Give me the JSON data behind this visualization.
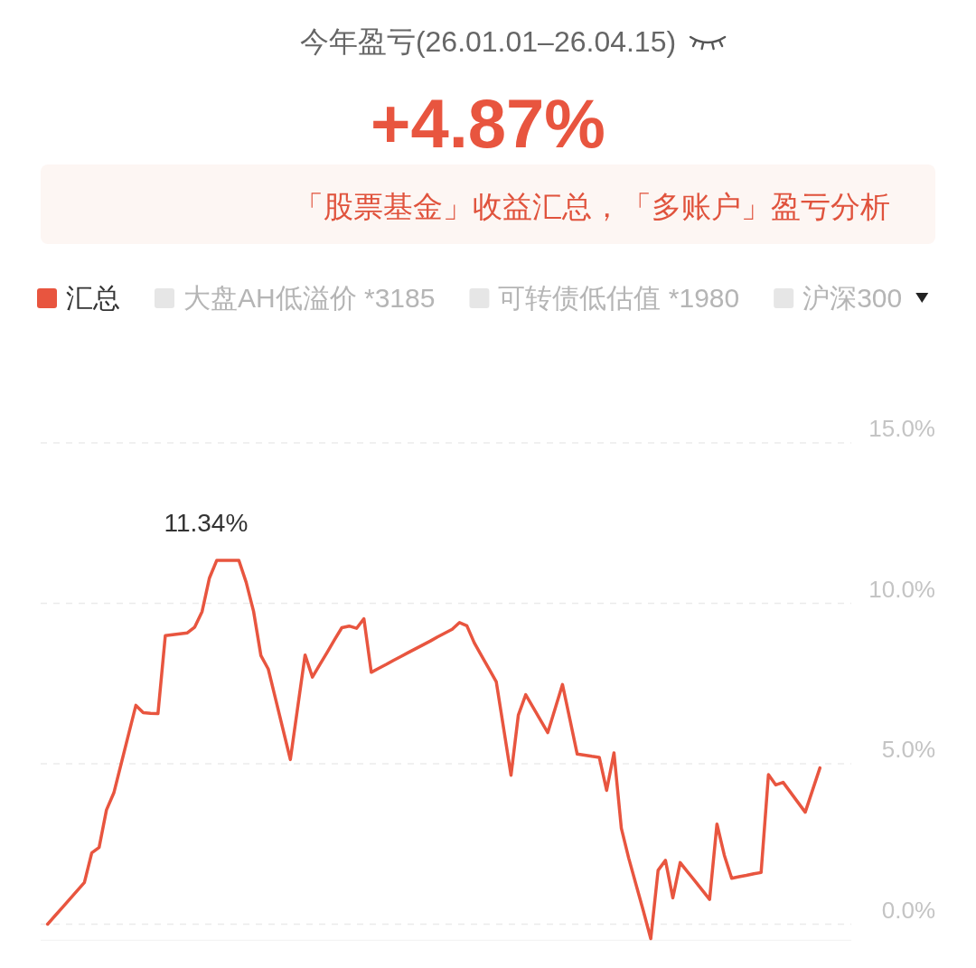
{
  "chart_data": {
    "type": "line",
    "title": "今年盈亏(26.01.01–26.04.15)",
    "subtitle": "+4.87%",
    "annotations": [
      "「股票基金」收益汇总，「多账户」盈亏分析",
      "11.34%"
    ],
    "categories": [
      null,
      null,
      null,
      null,
      null,
      null,
      null,
      null,
      null,
      null,
      null,
      null,
      null,
      null,
      null,
      null,
      null,
      null,
      null,
      null,
      null,
      null,
      null,
      null,
      null,
      null,
      null,
      null,
      null,
      null,
      null,
      null,
      null,
      null,
      null,
      null,
      null,
      null,
      null,
      null,
      null,
      null,
      null,
      null,
      null,
      null,
      null,
      null,
      null,
      null,
      null,
      null,
      null,
      null,
      null,
      null,
      null,
      null,
      null,
      null,
      null,
      null,
      null,
      null,
      null,
      null,
      null,
      null,
      null,
      null,
      null,
      null,
      null,
      null,
      null,
      null,
      null,
      null,
      null,
      null,
      null,
      null,
      null,
      null,
      null,
      null,
      null,
      null,
      null,
      null,
      null,
      null,
      null,
      null,
      null,
      null,
      null,
      null,
      null,
      null,
      null,
      null,
      null,
      null,
      null,
      null
    ],
    "series": [
      {
        "name": "汇总",
        "color": "#e8553f",
        "values": [
          0.0,
          0.26,
          0.52,
          0.78,
          1.04,
          1.3,
          2.22,
          2.39,
          3.56,
          4.09,
          5.0,
          5.91,
          6.82,
          6.59,
          6.57,
          6.56,
          8.99,
          9.02,
          9.05,
          9.08,
          9.26,
          9.74,
          10.79,
          11.34,
          11.34,
          11.34,
          11.34,
          10.65,
          9.75,
          8.37,
          7.95,
          7.01,
          6.07,
          5.13,
          6.76,
          8.39,
          7.7,
          8.09,
          8.47,
          8.86,
          9.24,
          9.29,
          9.22,
          9.52,
          7.85,
          7.97,
          8.09,
          8.22,
          8.34,
          8.46,
          8.58,
          8.7,
          8.82,
          8.95,
          9.07,
          9.19,
          9.4,
          9.3,
          8.77,
          8.36,
          7.96,
          7.55,
          6.1,
          4.64,
          6.52,
          7.15,
          6.76,
          6.36,
          5.97,
          6.72,
          7.47,
          6.39,
          5.3,
          5.27,
          5.23,
          5.2,
          4.17,
          5.34,
          2.99,
          2.06,
          1.23,
          0.41,
          -0.45,
          1.68,
          1.99,
          0.82,
          1.92,
          1.63,
          1.35,
          1.06,
          0.77,
          3.12,
          2.15,
          1.43,
          1.48,
          1.52,
          1.57,
          1.61,
          4.66,
          4.34,
          4.42,
          4.11,
          3.8,
          3.49,
          4.18,
          4.87
        ]
      },
      {
        "name": "大盘AH低溢价 *3185",
        "color": "#e6e6e6",
        "values": [
          null,
          null,
          null,
          null,
          null,
          null,
          null,
          null,
          null,
          null,
          null,
          null,
          null,
          null,
          null,
          null,
          null,
          null,
          null,
          null,
          null,
          null,
          null,
          null,
          null,
          null,
          null,
          null,
          null,
          null,
          null,
          null,
          null,
          null,
          null,
          null,
          null,
          null,
          null,
          null,
          null,
          null,
          null,
          null,
          null,
          null,
          null,
          null,
          null,
          null,
          null,
          null,
          null,
          null,
          null,
          null,
          null,
          null,
          null,
          null,
          null,
          null,
          null,
          null,
          null,
          null,
          null,
          null,
          null,
          null,
          null,
          null,
          null,
          null,
          null,
          null,
          null,
          null,
          null,
          null,
          null,
          null,
          null,
          null,
          null,
          null,
          null,
          null,
          null,
          null,
          null,
          null,
          null,
          null,
          null,
          null,
          null,
          null,
          null,
          null,
          null,
          null,
          null,
          null,
          null,
          null
        ]
      },
      {
        "name": "可转债低估值 *1980",
        "color": "#e6e6e6",
        "values": [
          null,
          null,
          null,
          null,
          null,
          null,
          null,
          null,
          null,
          null,
          null,
          null,
          null,
          null,
          null,
          null,
          null,
          null,
          null,
          null,
          null,
          null,
          null,
          null,
          null,
          null,
          null,
          null,
          null,
          null,
          null,
          null,
          null,
          null,
          null,
          null,
          null,
          null,
          null,
          null,
          null,
          null,
          null,
          null,
          null,
          null,
          null,
          null,
          null,
          null,
          null,
          null,
          null,
          null,
          null,
          null,
          null,
          null,
          null,
          null,
          null,
          null,
          null,
          null,
          null,
          null,
          null,
          null,
          null,
          null,
          null,
          null,
          null,
          null,
          null,
          null,
          null,
          null,
          null,
          null,
          null,
          null,
          null,
          null,
          null,
          null,
          null,
          null,
          null,
          null,
          null,
          null,
          null,
          null,
          null,
          null,
          null,
          null,
          null,
          null,
          null,
          null,
          null,
          null,
          null,
          null
        ]
      },
      {
        "name": "沪深300",
        "color": "#e6e6e6",
        "values": [
          null,
          null,
          null,
          null,
          null,
          null,
          null,
          null,
          null,
          null,
          null,
          null,
          null,
          null,
          null,
          null,
          null,
          null,
          null,
          null,
          null,
          null,
          null,
          null,
          null,
          null,
          null,
          null,
          null,
          null,
          null,
          null,
          null,
          null,
          null,
          null,
          null,
          null,
          null,
          null,
          null,
          null,
          null,
          null,
          null,
          null,
          null,
          null,
          null,
          null,
          null,
          null,
          null,
          null,
          null,
          null,
          null,
          null,
          null,
          null,
          null,
          null,
          null,
          null,
          null,
          null,
          null,
          null,
          null,
          null,
          null,
          null,
          null,
          null,
          null,
          null,
          null,
          null,
          null,
          null,
          null,
          null,
          null,
          null,
          null,
          null,
          null,
          null,
          null,
          null,
          null,
          null,
          null,
          null,
          null,
          null,
          null,
          null,
          null,
          null,
          null,
          null,
          null,
          null,
          null,
          null
        ]
      }
    ],
    "ylim": [
      -0.5,
      15
    ],
    "yticks": [
      {
        "value": 0,
        "label": "0.0%"
      },
      {
        "value": 5,
        "label": "5.0%"
      },
      {
        "value": 10,
        "label": "10.0%"
      },
      {
        "value": 15,
        "label": "15.0%"
      }
    ],
    "grid": "y",
    "legend": "top left",
    "line_style": "solid"
  }
}
